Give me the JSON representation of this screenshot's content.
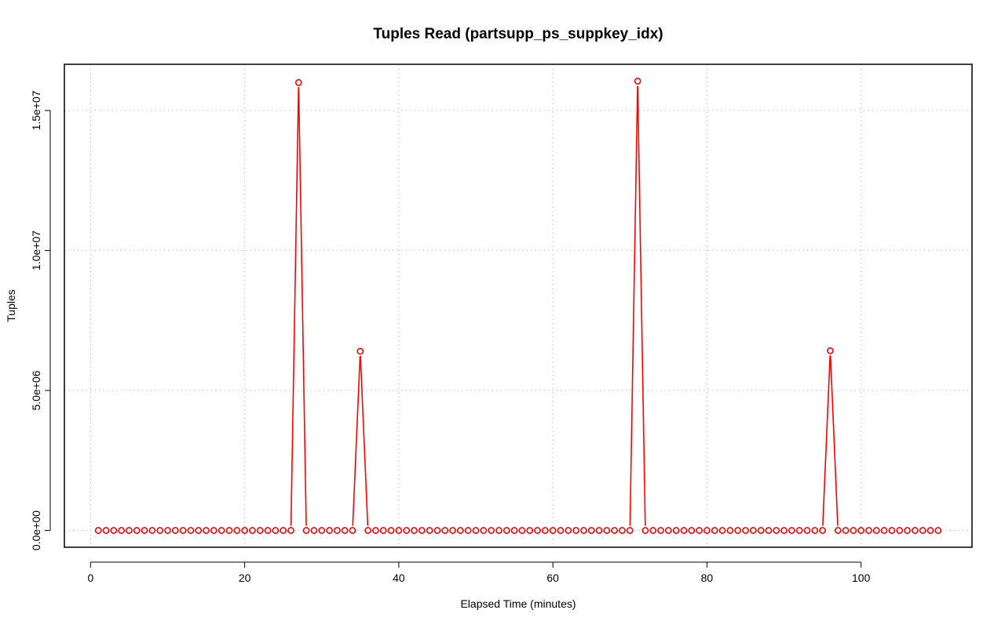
{
  "chart_data": {
    "type": "line",
    "title": "Tuples Read (partsupp_ps_suppkey_idx)",
    "xlabel": "Elapsed Time (minutes)",
    "ylabel": "Tuples",
    "xlim": [
      -3.4,
      114.4
    ],
    "ylim": [
      -600000,
      16650000
    ],
    "x_ticks": [
      0,
      20,
      40,
      60,
      80,
      100
    ],
    "x_tick_labels": [
      "0",
      "20",
      "40",
      "60",
      "80",
      "100"
    ],
    "y_ticks": [
      0,
      5000000,
      10000000,
      15000000
    ],
    "y_tick_labels": [
      "0.0e+00",
      "5.0e+06",
      "1.0e+07",
      "1.5e+07"
    ],
    "grid": true,
    "line_style": "b",
    "colors": {
      "series": "#ff0000",
      "grid": "#c8c8c8",
      "axis": "#000000"
    },
    "series": [
      {
        "x": [
          1,
          2,
          3,
          4,
          5,
          6,
          7,
          8,
          9,
          10,
          11,
          12,
          13,
          14,
          15,
          16,
          17,
          18,
          19,
          20,
          21,
          22,
          23,
          24,
          25,
          26,
          27,
          28,
          29,
          30,
          31,
          32,
          33,
          34,
          35,
          36,
          37,
          38,
          39,
          40,
          41,
          42,
          43,
          44,
          45,
          46,
          47,
          48,
          49,
          50,
          51,
          52,
          53,
          54,
          55,
          56,
          57,
          58,
          59,
          60,
          61,
          62,
          63,
          64,
          65,
          66,
          67,
          68,
          69,
          70,
          71,
          72,
          73,
          74,
          75,
          76,
          77,
          78,
          79,
          80,
          81,
          82,
          83,
          84,
          85,
          86,
          87,
          88,
          89,
          90,
          91,
          92,
          93,
          94,
          95,
          96,
          97,
          98,
          99,
          100,
          101,
          102,
          103,
          104,
          105,
          106,
          107,
          108,
          109,
          110
        ],
        "values": [
          0,
          0,
          0,
          0,
          0,
          0,
          0,
          0,
          0,
          0,
          0,
          0,
          0,
          0,
          0,
          0,
          0,
          0,
          0,
          0,
          0,
          0,
          0,
          0,
          0,
          0,
          16000000,
          0,
          0,
          0,
          0,
          0,
          0,
          0,
          6400000,
          0,
          0,
          0,
          0,
          0,
          0,
          0,
          0,
          0,
          0,
          0,
          0,
          0,
          0,
          0,
          0,
          0,
          0,
          0,
          0,
          0,
          0,
          0,
          0,
          0,
          0,
          0,
          0,
          0,
          0,
          0,
          0,
          0,
          0,
          0,
          16050000,
          0,
          0,
          0,
          0,
          0,
          0,
          0,
          0,
          0,
          0,
          0,
          0,
          0,
          0,
          0,
          0,
          0,
          0,
          0,
          0,
          0,
          0,
          0,
          0,
          6420000,
          0,
          0,
          0,
          0,
          0,
          0,
          0,
          0,
          0,
          0,
          0,
          0,
          0,
          0
        ]
      }
    ]
  }
}
